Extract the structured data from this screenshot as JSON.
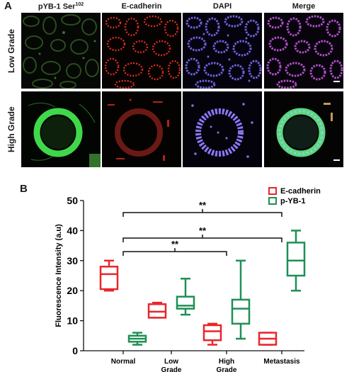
{
  "panel_a": {
    "label": "A",
    "columns": [
      "pYB-1 Ser",
      "E-cadherin",
      "DAPI",
      "Merge"
    ],
    "first_column_superscript": "102",
    "rows": [
      "Low Grade",
      "High Grade"
    ]
  },
  "panel_b": {
    "label": "B"
  },
  "chart_data": {
    "type": "boxplot",
    "ylabel": "Fluorescence Intensity (a.u)",
    "ylim": [
      0,
      50
    ],
    "yticks": [
      0,
      10,
      20,
      30,
      40,
      50
    ],
    "categories": [
      [
        "Normal"
      ],
      [
        "Low",
        "Grade"
      ],
      [
        "High",
        "Grade"
      ],
      [
        "Metastasis"
      ]
    ],
    "legend_position": "top-right",
    "series": [
      {
        "name": "E-cadherin",
        "color": "#e8262b",
        "boxes": [
          {
            "min": 20,
            "q1": 20.5,
            "median": 25.5,
            "q3": 28,
            "max": 30
          },
          {
            "min": 11,
            "q1": 11,
            "median": 13,
            "q3": 15.5,
            "max": 16
          },
          {
            "min": 2,
            "q1": 3.5,
            "median": 6.5,
            "q3": 8.5,
            "max": 9
          },
          {
            "min": 2,
            "q1": 2,
            "median": 4,
            "q3": 6,
            "max": 6
          }
        ]
      },
      {
        "name": "p-YB-1",
        "color": "#1e8f55",
        "boxes": [
          {
            "min": 2,
            "q1": 3,
            "median": 4,
            "q3": 5,
            "max": 6
          },
          {
            "min": 12,
            "q1": 14,
            "median": 15,
            "q3": 18,
            "max": 24
          },
          {
            "min": 4,
            "q1": 9,
            "median": 14,
            "q3": 17,
            "max": 30
          },
          {
            "min": 20,
            "q1": 25,
            "median": 30,
            "q3": 36,
            "max": 40
          }
        ]
      }
    ],
    "significance": [
      {
        "from": "Normal",
        "to": "Metastasis",
        "y": 46,
        "label": "**"
      },
      {
        "from": "Normal",
        "to": "Metastasis",
        "y": 37.5,
        "label": "**"
      },
      {
        "from": "Normal",
        "to": "High Grade",
        "y": 33,
        "label": "**"
      }
    ]
  }
}
